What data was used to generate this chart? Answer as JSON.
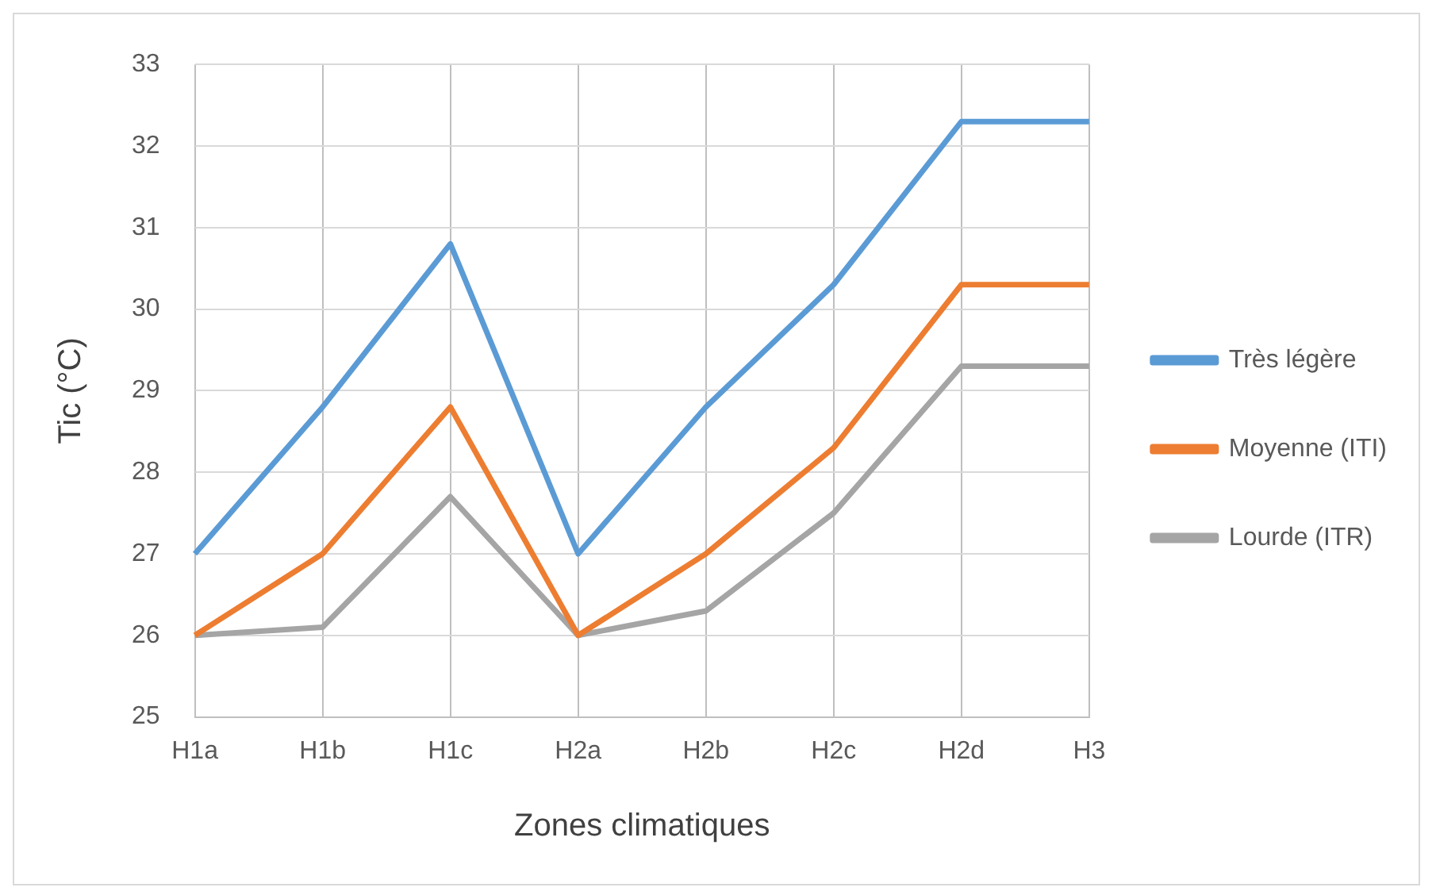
{
  "chart_data": {
    "type": "line",
    "xlabel": "Zones climatiques",
    "ylabel": "Tic (°C)",
    "categories": [
      "H1a",
      "H1b",
      "H1c",
      "H2a",
      "H2b",
      "H2c",
      "H2d",
      "H3"
    ],
    "series": [
      {
        "name": "Très légère",
        "color": "#5b9bd5",
        "values": [
          27,
          28.8,
          30.8,
          27,
          28.8,
          30.3,
          32.3,
          32.3
        ]
      },
      {
        "name": "Moyenne (ITI)",
        "color": "#ed7d31",
        "values": [
          26,
          27,
          28.8,
          26,
          27,
          28.3,
          30.3,
          30.3
        ]
      },
      {
        "name": "Lourde (ITR)",
        "color": "#a5a5a5",
        "values": [
          26,
          26.1,
          27.7,
          26,
          26.3,
          27.5,
          29.3,
          29.3
        ]
      }
    ],
    "ylim": [
      25,
      33
    ],
    "yticks": [
      25,
      26,
      27,
      28,
      29,
      30,
      31,
      32,
      33
    ],
    "grid": true,
    "legend": "right",
    "marker": "none",
    "line_style": "solid"
  }
}
